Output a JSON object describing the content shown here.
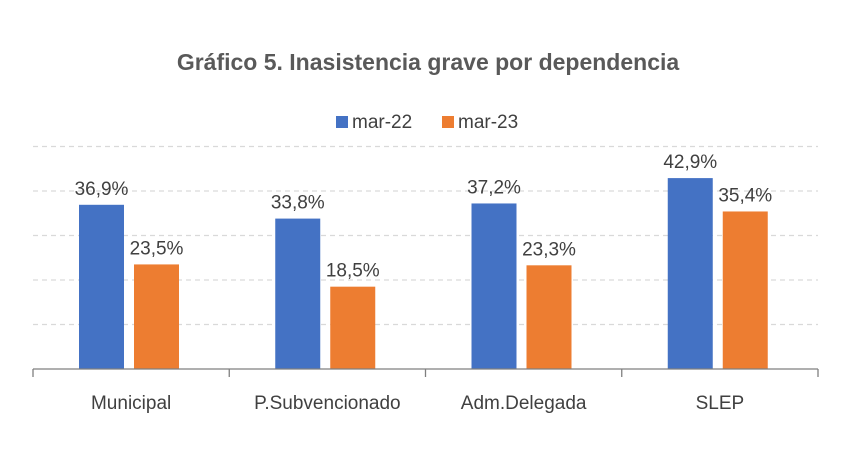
{
  "chart_data": {
    "type": "bar",
    "title": "Gráfico 5. Inasistencia grave por dependencia",
    "categories": [
      "Municipal",
      "P.Subvencionado",
      "Adm.Delegada",
      "SLEP"
    ],
    "series": [
      {
        "name": "mar-22",
        "color": "#4472C4",
        "values": [
          36.9,
          33.8,
          37.2,
          42.9
        ],
        "labels": [
          "36,9%",
          "33,8%",
          "37,2%",
          "42,9%"
        ]
      },
      {
        "name": "mar-23",
        "color": "#ED7D31",
        "values": [
          23.5,
          18.5,
          23.3,
          35.4
        ],
        "labels": [
          "23,5%",
          "18,5%",
          "23,3%",
          "35,4%"
        ]
      }
    ],
    "xlabel": "",
    "ylabel": "",
    "ylim": [
      0,
      50
    ],
    "grid": true,
    "legend": "top-center"
  }
}
